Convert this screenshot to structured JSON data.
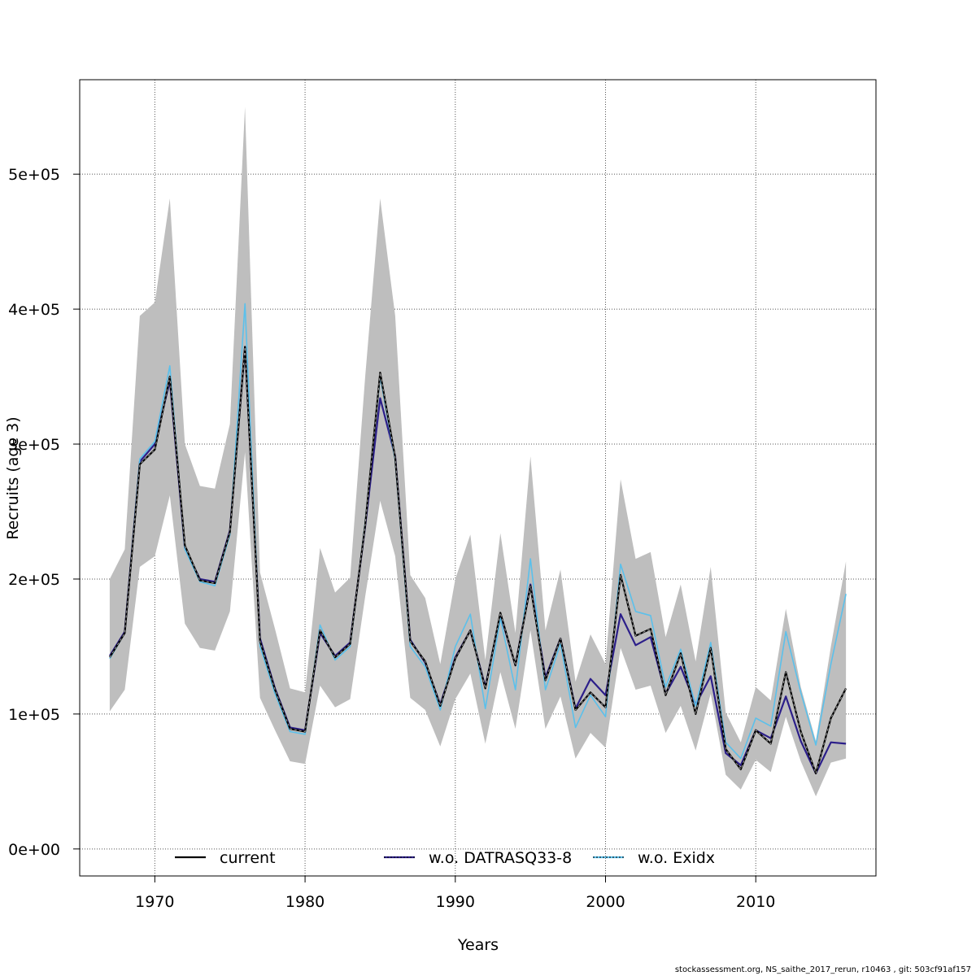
{
  "chart_data": {
    "type": "line",
    "title": "",
    "xlabel": "Years",
    "ylabel": "Recruits (age 3)",
    "xlim": [
      1965,
      2018
    ],
    "ylim": [
      -20000,
      570000
    ],
    "x_ticks": [
      1970,
      1980,
      1990,
      2000,
      2010
    ],
    "x_tick_labels": [
      "1970",
      "1980",
      "1990",
      "2000",
      "2010"
    ],
    "y_ticks": [
      0,
      100000,
      200000,
      300000,
      400000,
      500000
    ],
    "y_tick_labels": [
      "0e+00",
      "1e+05",
      "2e+05",
      "3e+05",
      "4e+05",
      "5e+05"
    ],
    "grid": true,
    "legend_position": "bottom",
    "x": [
      1967,
      1968,
      1969,
      1970,
      1971,
      1972,
      1973,
      1974,
      1975,
      1976,
      1977,
      1978,
      1979,
      1980,
      1981,
      1982,
      1983,
      1984,
      1985,
      1986,
      1987,
      1988,
      1989,
      1990,
      1991,
      1992,
      1993,
      1994,
      1995,
      1996,
      1997,
      1998,
      1999,
      2000,
      2001,
      2002,
      2003,
      2004,
      2005,
      2006,
      2007,
      2008,
      2009,
      2010,
      2011,
      2012,
      2013,
      2014,
      2015,
      2016
    ],
    "band": {
      "name": "confidence interval",
      "color": "#bebebe",
      "upper": [
        200000,
        222000,
        395000,
        405000,
        482000,
        300000,
        269000,
        267000,
        315000,
        550000,
        205000,
        163000,
        119000,
        116000,
        223000,
        190000,
        201000,
        350000,
        482000,
        395000,
        203000,
        186000,
        137000,
        200000,
        233000,
        140000,
        234000,
        160000,
        291000,
        162000,
        207000,
        124000,
        159000,
        137000,
        274000,
        215000,
        220000,
        157000,
        196000,
        139000,
        209000,
        101000,
        79000,
        120000,
        110000,
        178000,
        120000,
        80000,
        150000,
        213000
      ],
      "lower": [
        102000,
        118000,
        209000,
        217000,
        262000,
        167000,
        149000,
        147000,
        176000,
        294000,
        112000,
        88000,
        65000,
        63000,
        121000,
        105000,
        111000,
        187000,
        258000,
        217000,
        112000,
        103000,
        76000,
        111000,
        130000,
        78000,
        131000,
        89000,
        162000,
        89000,
        113000,
        67000,
        86000,
        75000,
        149000,
        118000,
        121000,
        86000,
        106000,
        73000,
        115000,
        55000,
        44000,
        66000,
        57000,
        98000,
        65000,
        39000,
        64000,
        67000
      ]
    },
    "series": [
      {
        "name": "current",
        "color": "#000000",
        "values": [
          142000,
          160000,
          285000,
          296000,
          350000,
          225000,
          199000,
          197000,
          235000,
          372000,
          154000,
          118000,
          89000,
          87000,
          162000,
          142000,
          152000,
          240000,
          353000,
          290000,
          154000,
          139000,
          106000,
          141000,
          162000,
          119000,
          175000,
          136000,
          195000,
          125000,
          156000,
          103000,
          116000,
          105000,
          203000,
          158000,
          163000,
          114000,
          145000,
          100000,
          149000,
          74000,
          59000,
          88000,
          78000,
          131000,
          87000,
          56000,
          97000,
          119000
        ]
      },
      {
        "name": "w.o. DATRASQ33-8",
        "color": "#2c1f8a",
        "values": [
          143000,
          161000,
          287000,
          300000,
          347000,
          223000,
          200000,
          198000,
          236000,
          372000,
          156000,
          119000,
          90000,
          88000,
          160000,
          143000,
          153000,
          239000,
          334000,
          291000,
          155000,
          138000,
          107000,
          142000,
          162000,
          120000,
          174000,
          136000,
          196000,
          127000,
          156000,
          104000,
          126000,
          114000,
          174000,
          151000,
          157000,
          115000,
          135000,
          107000,
          128000,
          71000,
          62000,
          88000,
          82000,
          113000,
          80000,
          56000,
          79000,
          78000
        ]
      },
      {
        "name": "w.o. Exidx",
        "color": "#5bc0eb",
        "values": [
          141000,
          160000,
          289000,
          302000,
          358000,
          222000,
          198000,
          195000,
          233000,
          404000,
          150000,
          115000,
          87000,
          85000,
          166000,
          140000,
          150000,
          242000,
          350000,
          288000,
          150000,
          135000,
          103000,
          150000,
          174000,
          104000,
          171000,
          118000,
          215000,
          118000,
          152000,
          90000,
          114000,
          98000,
          211000,
          176000,
          173000,
          120000,
          148000,
          106000,
          153000,
          79000,
          67000,
          97000,
          91000,
          161000,
          116000,
          77000,
          137000,
          189000
        ]
      }
    ]
  },
  "footer": "stockassessment.org, NS_saithe_2017_rerun, r10463 , git: 503cf91af157"
}
